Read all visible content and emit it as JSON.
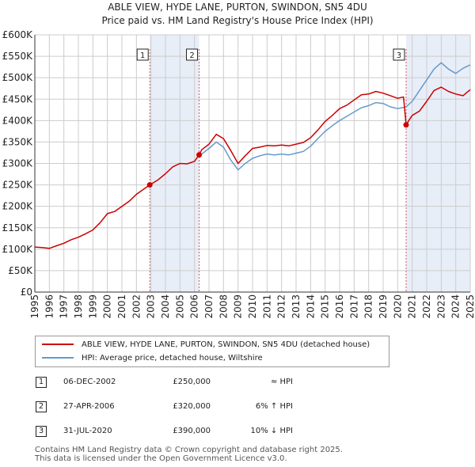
{
  "chart_data": {
    "type": "line",
    "title": "ABLE VIEW, HYDE LANE, PURTON, SWINDON, SN5 4DU",
    "subtitle": "Price paid vs. HM Land Registry's House Price Index (HPI)",
    "xlabel": "",
    "ylabel": "",
    "xlim": [
      1995,
      2025
    ],
    "ylim": [
      0,
      600000
    ],
    "x_ticks": [
      "1995",
      "1996",
      "1997",
      "1998",
      "1999",
      "2000",
      "2001",
      "2002",
      "2003",
      "2004",
      "2005",
      "2006",
      "2007",
      "2008",
      "2009",
      "2010",
      "2011",
      "2012",
      "2013",
      "2014",
      "2015",
      "2016",
      "2017",
      "2018",
      "2019",
      "2020",
      "2021",
      "2022",
      "2023",
      "2024",
      "2025"
    ],
    "y_ticks": [
      {
        "value": 0,
        "label": "£0"
      },
      {
        "value": 50000,
        "label": "£50K"
      },
      {
        "value": 100000,
        "label": "£100K"
      },
      {
        "value": 150000,
        "label": "£150K"
      },
      {
        "value": 200000,
        "label": "£200K"
      },
      {
        "value": 250000,
        "label": "£250K"
      },
      {
        "value": 300000,
        "label": "£300K"
      },
      {
        "value": 350000,
        "label": "£350K"
      },
      {
        "value": 400000,
        "label": "£400K"
      },
      {
        "value": 450000,
        "label": "£450K"
      },
      {
        "value": 500000,
        "label": "£500K"
      },
      {
        "value": 550000,
        "label": "£550K"
      },
      {
        "value": 600000,
        "label": "£600K"
      }
    ],
    "grid": true,
    "series": [
      {
        "name": "ABLE VIEW, HYDE LANE, PURTON, SWINDON, SN5 4DU (detached house)",
        "color": "#cc0000",
        "x": [
          1995.0,
          1995.5,
          1996.0,
          1996.5,
          1997.0,
          1997.5,
          1998.0,
          1998.5,
          1999.0,
          1999.5,
          2000.0,
          2000.5,
          2001.0,
          2001.5,
          2002.0,
          2002.5,
          2002.92,
          2003.5,
          2004.0,
          2004.5,
          2005.0,
          2005.5,
          2006.0,
          2006.32,
          2006.5,
          2007.0,
          2007.5,
          2008.0,
          2008.5,
          2009.0,
          2009.5,
          2010.0,
          2010.5,
          2011.0,
          2011.5,
          2012.0,
          2012.5,
          2013.0,
          2013.5,
          2014.0,
          2014.5,
          2015.0,
          2015.5,
          2016.0,
          2016.5,
          2017.0,
          2017.5,
          2018.0,
          2018.5,
          2019.0,
          2019.5,
          2020.0,
          2020.4,
          2020.58,
          2020.8,
          2021.0,
          2021.5,
          2022.0,
          2022.5,
          2023.0,
          2023.5,
          2024.0,
          2024.5,
          2025.0
        ],
        "values": [
          105000,
          104000,
          102000,
          108000,
          114000,
          122000,
          128000,
          136000,
          145000,
          162000,
          183000,
          188000,
          200000,
          212000,
          228000,
          240000,
          250000,
          262000,
          276000,
          292000,
          300000,
          299000,
          305000,
          320000,
          332000,
          345000,
          368000,
          358000,
          330000,
          300000,
          318000,
          335000,
          338000,
          342000,
          341000,
          343000,
          341000,
          345000,
          349000,
          360000,
          378000,
          398000,
          412000,
          428000,
          436000,
          448000,
          460000,
          462000,
          468000,
          464000,
          458000,
          452000,
          455000,
          390000,
          402000,
          412000,
          422000,
          445000,
          470000,
          478000,
          468000,
          462000,
          458000,
          472000
        ]
      },
      {
        "name": "HPI: Average price, detached house, Wiltshire",
        "color": "#6699cc",
        "x": [
          2006.32,
          2006.5,
          2007.0,
          2007.5,
          2008.0,
          2008.5,
          2009.0,
          2009.5,
          2010.0,
          2010.5,
          2011.0,
          2011.5,
          2012.0,
          2012.5,
          2013.0,
          2013.5,
          2014.0,
          2014.5,
          2015.0,
          2015.5,
          2016.0,
          2016.5,
          2017.0,
          2017.5,
          2018.0,
          2018.5,
          2019.0,
          2019.5,
          2020.0,
          2020.58,
          2021.0,
          2021.5,
          2022.0,
          2022.5,
          2023.0,
          2023.5,
          2024.0,
          2024.5,
          2025.0
        ],
        "values": [
          320000,
          322000,
          335000,
          350000,
          338000,
          308000,
          285000,
          300000,
          312000,
          318000,
          322000,
          320000,
          322000,
          320000,
          324000,
          328000,
          340000,
          358000,
          375000,
          388000,
          400000,
          410000,
          420000,
          430000,
          435000,
          442000,
          440000,
          432000,
          428000,
          432000,
          445000,
          470000,
          495000,
          520000,
          535000,
          520000,
          510000,
          522000,
          530000
        ]
      }
    ],
    "transactions": [
      {
        "num": "1",
        "date": "06-DEC-2002",
        "x": 2002.92,
        "value": 250000,
        "price": "£250,000",
        "relation": "≈ HPI"
      },
      {
        "num": "2",
        "date": "27-APR-2006",
        "x": 2006.32,
        "value": 320000,
        "price": "£320,000",
        "relation": "6% ↑ HPI"
      },
      {
        "num": "3",
        "date": "31-JUL-2020",
        "x": 2020.58,
        "value": 390000,
        "price": "£390,000",
        "relation": "10% ↓ HPI"
      }
    ],
    "colors": {
      "price": "#cc0000",
      "hpi": "#6699cc",
      "band": "#e8eef8",
      "grid": "#cccccc",
      "vline": "#dd5555"
    }
  },
  "legend": {
    "price_label": "ABLE VIEW, HYDE LANE, PURTON, SWINDON, SN5 4DU (detached house)",
    "hpi_label": "HPI: Average price, detached house, Wiltshire"
  },
  "footer": {
    "line1": "Contains HM Land Registry data © Crown copyright and database right 2025.",
    "line2": "This data is licensed under the Open Government Licence v3.0."
  }
}
